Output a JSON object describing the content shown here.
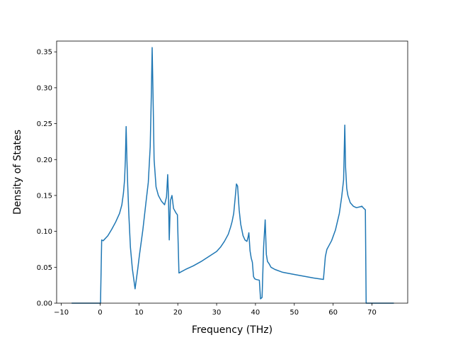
{
  "chart_data": {
    "type": "line",
    "title": "",
    "xlabel": "Frequency (THz)",
    "ylabel": "Density of States",
    "xlim": [
      -11.2,
      79.2
    ],
    "ylim": [
      0,
      0.365
    ],
    "xticks": [
      -10,
      0,
      10,
      20,
      30,
      40,
      50,
      60,
      70
    ],
    "xtick_labels": [
      "−10",
      "0",
      "10",
      "20",
      "30",
      "40",
      "50",
      "60",
      "70"
    ],
    "yticks": [
      0.0,
      0.05,
      0.1,
      0.15,
      0.2,
      0.25,
      0.3,
      0.35
    ],
    "ytick_labels": [
      "0.00",
      "0.05",
      "0.10",
      "0.15",
      "0.20",
      "0.25",
      "0.30",
      "0.35"
    ],
    "grid": false,
    "series": [
      {
        "color": "#1f77b4",
        "x": [
          -7.2,
          -0.3,
          0.1,
          0.4,
          0.8,
          2,
          3,
          4,
          5,
          5.6,
          6,
          6.3,
          6.5,
          6.7,
          6.9,
          7.1,
          7.4,
          7.8,
          8.3,
          9,
          9.7,
          10.1,
          11,
          11.8,
          12.4,
          12.9,
          13.2,
          13.4,
          13.6,
          13.9,
          14.4,
          15,
          15.8,
          16.6,
          17.1,
          17.4,
          17.6,
          17.8,
          18.1,
          18.5,
          18.9,
          19.5,
          19.9,
          20.3,
          22,
          24,
          26,
          28,
          30,
          31,
          32,
          33,
          33.6,
          34,
          34.4,
          34.8,
          35.1,
          35.4,
          35.8,
          36.2,
          36.8,
          37.3,
          37.8,
          38.1,
          38.3,
          38.6,
          38.9,
          39.2,
          39.5,
          39.8,
          40.2,
          41,
          41.3,
          41.7,
          42.1,
          42.5,
          42.8,
          43.1,
          43.5,
          44,
          45,
          47,
          50,
          53,
          55,
          57.5,
          58,
          58.4,
          58.8,
          59.6,
          60.6,
          61.6,
          62.2,
          62.7,
          63,
          63.2,
          63.5,
          63.8,
          64.4,
          65.2,
          66,
          66.8,
          67.4,
          67.9,
          68.3,
          68.5,
          69.1,
          75.5
        ],
        "y": [
          0,
          0,
          0,
          0.088,
          0.087,
          0.094,
          0.103,
          0.113,
          0.125,
          0.137,
          0.153,
          0.172,
          0.2,
          0.246,
          0.2,
          0.165,
          0.123,
          0.078,
          0.048,
          0.02,
          0.048,
          0.066,
          0.102,
          0.14,
          0.168,
          0.218,
          0.294,
          0.356,
          0.298,
          0.2,
          0.162,
          0.15,
          0.142,
          0.137,
          0.148,
          0.179,
          0.148,
          0.088,
          0.143,
          0.15,
          0.132,
          0.126,
          0.123,
          0.042,
          0.047,
          0.052,
          0.058,
          0.065,
          0.072,
          0.078,
          0.086,
          0.096,
          0.106,
          0.114,
          0.125,
          0.148,
          0.166,
          0.163,
          0.13,
          0.11,
          0.094,
          0.088,
          0.086,
          0.092,
          0.098,
          0.073,
          0.063,
          0.057,
          0.037,
          0.034,
          0.033,
          0.032,
          0.006,
          0.008,
          0.078,
          0.116,
          0.068,
          0.058,
          0.055,
          0.05,
          0.047,
          0.043,
          0.04,
          0.037,
          0.035,
          0.033,
          0.065,
          0.075,
          0.079,
          0.087,
          0.102,
          0.125,
          0.148,
          0.172,
          0.248,
          0.19,
          0.16,
          0.15,
          0.14,
          0.135,
          0.133,
          0.134,
          0.135,
          0.132,
          0.13,
          0,
          0,
          0
        ]
      }
    ]
  }
}
